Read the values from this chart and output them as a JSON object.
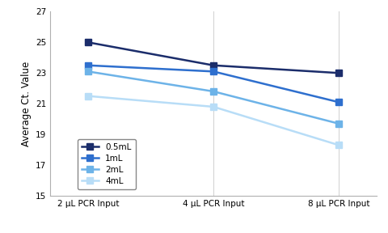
{
  "x_labels": [
    "2 μL PCR Input",
    "4 μL PCR Input",
    "8 μL PCR Input"
  ],
  "x_positions": [
    0,
    1,
    2
  ],
  "series": [
    {
      "label": "0.5mL",
      "values": [
        25.0,
        23.5,
        23.0
      ],
      "color": "#1b2d6b",
      "marker": "s",
      "linewidth": 1.8,
      "markersize": 6
    },
    {
      "label": "1mL",
      "values": [
        23.5,
        23.1,
        21.1
      ],
      "color": "#2e6fce",
      "marker": "s",
      "linewidth": 1.8,
      "markersize": 6
    },
    {
      "label": "2mL",
      "values": [
        23.1,
        21.8,
        19.7
      ],
      "color": "#6db3e8",
      "marker": "s",
      "linewidth": 1.8,
      "markersize": 6
    },
    {
      "label": "4mL",
      "values": [
        21.5,
        20.8,
        18.3
      ],
      "color": "#b8ddf7",
      "marker": "s",
      "linewidth": 1.8,
      "markersize": 6
    }
  ],
  "ylabel": "Average Ct. Value",
  "ylim": [
    15,
    27
  ],
  "yticks": [
    15,
    17,
    19,
    21,
    23,
    25,
    27
  ],
  "background_color": "#ffffff",
  "legend_fontsize": 7.5,
  "ylabel_fontsize": 8.5,
  "tick_fontsize": 7.5,
  "xtick_fontsize": 7.5
}
